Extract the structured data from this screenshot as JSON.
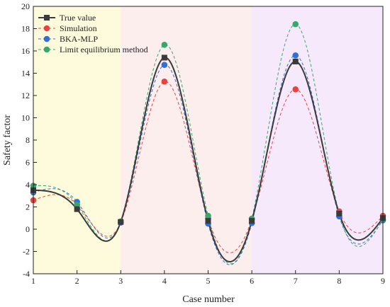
{
  "chart_data": {
    "type": "line",
    "xlabel": "Case number",
    "ylabel": "Safety factor",
    "xlim": [
      1,
      9
    ],
    "ylim": [
      -4,
      20
    ],
    "xticks": [
      1,
      2,
      3,
      4,
      5,
      6,
      7,
      8,
      9
    ],
    "yticks": [
      -4,
      -2,
      0,
      2,
      4,
      6,
      8,
      10,
      12,
      14,
      16,
      18,
      20
    ],
    "regions": [
      {
        "x": [
          1,
          3
        ],
        "color": "#fdfbdc"
      },
      {
        "x": [
          3,
          6
        ],
        "color": "#fdeeee"
      },
      {
        "x": [
          6,
          9
        ],
        "color": "#f6e9fb"
      }
    ],
    "legend_position": "top-left",
    "x": [
      1,
      2,
      3,
      4,
      5,
      6,
      7,
      8,
      9
    ],
    "series": [
      {
        "name": "True value",
        "color": "#3a3a3a",
        "marker": "square",
        "line": "solid",
        "values": [
          3.5,
          1.8,
          0.65,
          15.4,
          0.75,
          0.75,
          15.05,
          1.4,
          1.0
        ]
      },
      {
        "name": "Simulation",
        "color": "#e8433f",
        "marker": "circle",
        "line": "dashed",
        "values": [
          2.6,
          2.2,
          0.6,
          13.25,
          0.95,
          0.9,
          12.55,
          1.6,
          1.2
        ]
      },
      {
        "name": "BKA-MLP",
        "color": "#2f6fd6",
        "marker": "circle",
        "line": "dashed",
        "values": [
          3.3,
          2.45,
          0.6,
          14.75,
          0.5,
          0.55,
          15.6,
          1.15,
          0.8
        ]
      },
      {
        "name": "Limit equilibrium method",
        "color": "#35a86a",
        "marker": "circle",
        "line": "dashed",
        "values": [
          3.9,
          2.2,
          0.7,
          16.55,
          1.2,
          0.95,
          18.4,
          1.4,
          0.9
        ]
      }
    ]
  }
}
